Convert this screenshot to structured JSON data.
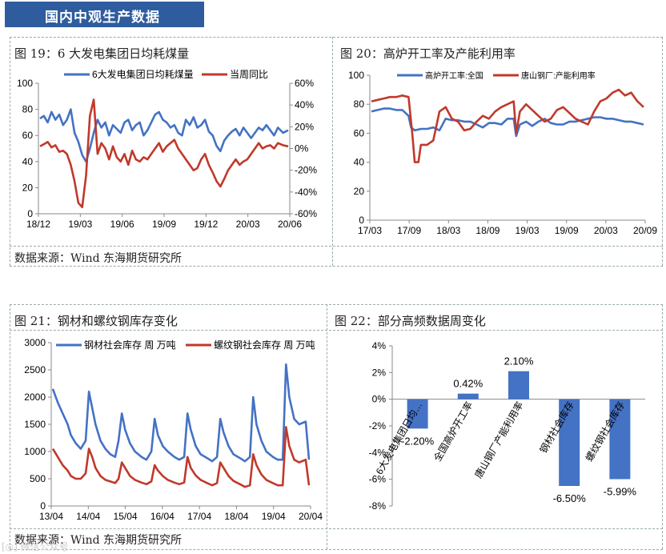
{
  "header": {
    "title": "国内中观生产数据"
  },
  "source_text": "数据来源：Wind   东海期货研究所",
  "watermark": "[◎] 微信公众号",
  "charts": [
    {
      "panel_title": "图 19：6 大发电集团日均耗煤量",
      "chart_data": {
        "type": "line",
        "title": "",
        "x_ticks": [
          "18/12",
          "19/03",
          "19/06",
          "19/09",
          "19/12",
          "20/03",
          "20/06"
        ],
        "y_left": {
          "ticks": [
            "0",
            "20",
            "40",
            "60",
            "80",
            "100"
          ],
          "lim": [
            0,
            100
          ]
        },
        "y_right": {
          "ticks": [
            "-60%",
            "-40%",
            "-20%",
            "0%",
            "20%",
            "40%",
            "60%"
          ],
          "lim": [
            -60,
            60
          ]
        },
        "series": [
          {
            "name": "6大发电集团日均耗煤量",
            "axis": "left",
            "color": "#4472C4",
            "x": [
              0,
              0.3,
              0.6,
              0.9,
              1.2,
              1.5,
              1.8,
              2.1,
              2.4,
              2.7,
              3.0,
              3.3,
              3.6,
              3.9,
              4.2,
              4.5,
              4.8,
              5.1,
              5.4,
              5.7,
              6.0,
              6.3,
              6.6,
              6.9,
              7.2,
              7.5,
              7.8,
              8.1,
              8.4,
              8.7,
              9.0,
              9.3,
              9.6,
              9.9,
              10.2,
              10.5,
              10.8,
              11.1,
              11.4,
              11.7,
              12.0,
              12.3,
              12.6,
              12.9,
              13.2,
              13.5,
              13.8,
              14.1,
              14.4,
              14.7,
              15.0,
              15.3,
              15.6,
              15.9,
              16.2,
              16.5,
              16.8,
              17.1,
              17.4,
              17.7,
              18.0,
              18.3,
              18.6,
              19.0,
              19.4
            ],
            "values": [
              73,
              75,
              70,
              78,
              72,
              76,
              68,
              72,
              80,
              62,
              55,
              45,
              40,
              50,
              62,
              72,
              66,
              70,
              60,
              68,
              65,
              62,
              70,
              72,
              64,
              68,
              70,
              60,
              64,
              70,
              76,
              78,
              72,
              70,
              66,
              68,
              62,
              60,
              72,
              68,
              74,
              66,
              68,
              72,
              63,
              60,
              52,
              48,
              56,
              60,
              63,
              65,
              60,
              66,
              62,
              58,
              62,
              66,
              64,
              68,
              64,
              60,
              66,
              62,
              64
            ]
          },
          {
            "name": "当周同比",
            "axis": "right",
            "color": "#C0392B",
            "x": [
              0,
              0.3,
              0.6,
              0.9,
              1.2,
              1.5,
              1.8,
              2.1,
              2.4,
              2.7,
              3.0,
              3.3,
              3.6,
              3.9,
              4.2,
              4.5,
              4.8,
              5.1,
              5.4,
              5.7,
              6.0,
              6.3,
              6.6,
              6.9,
              7.2,
              7.5,
              7.8,
              8.1,
              8.4,
              8.7,
              9.0,
              9.3,
              9.6,
              9.9,
              10.2,
              10.5,
              10.8,
              11.1,
              11.4,
              11.7,
              12.0,
              12.3,
              12.6,
              12.9,
              13.2,
              13.5,
              13.8,
              14.1,
              14.4,
              14.7,
              15.0,
              15.3,
              15.6,
              15.9,
              16.2,
              16.5,
              16.8,
              17.1,
              17.4,
              17.7,
              18.0,
              18.3,
              18.6,
              19.0,
              19.4
            ],
            "values": [
              2,
              4,
              6,
              1,
              3,
              -3,
              -2,
              -5,
              -15,
              -30,
              -50,
              -54,
              -25,
              30,
              45,
              -5,
              5,
              0,
              -10,
              2,
              -8,
              -12,
              -5,
              -15,
              -2,
              -10,
              -12,
              -8,
              -10,
              -5,
              0,
              5,
              -3,
              2,
              5,
              8,
              0,
              -5,
              -10,
              -15,
              -20,
              -18,
              -10,
              -5,
              -15,
              -22,
              -30,
              -35,
              -28,
              -20,
              -15,
              -10,
              -15,
              -12,
              -10,
              -5,
              0,
              5,
              0,
              2,
              3,
              0,
              5,
              3,
              2
            ]
          }
        ]
      }
    },
    {
      "panel_title": "图 20：高炉开工率及产能利用率",
      "chart_data": {
        "type": "line",
        "title": "",
        "x_ticks": [
          "17/03",
          "17/09",
          "18/03",
          "18/09",
          "19/03",
          "19/09",
          "20/03",
          "20/09"
        ],
        "y_left": {
          "ticks": [
            "0",
            "20",
            "40",
            "60",
            "80",
            "100"
          ],
          "lim": [
            0,
            100
          ]
        },
        "series": [
          {
            "name": "高炉开工率:全国",
            "axis": "left",
            "color": "#4472C4",
            "x": [
              0,
              0.5,
              1,
              1.5,
              2,
              2.5,
              3,
              3.2,
              3.5,
              4,
              4.5,
              5,
              5.5,
              6,
              6.5,
              7,
              7.5,
              8,
              8.5,
              9,
              9.5,
              10,
              10.5,
              11,
              11.5,
              11.7,
              12,
              12.5,
              13,
              13.5,
              14,
              14.5,
              15,
              15.5,
              16,
              16.5,
              17,
              17.5,
              18,
              18.5,
              19,
              19.5,
              20,
              20.5,
              21,
              21.5,
              22
            ],
            "values": [
              75,
              76,
              77,
              77,
              76,
              76,
              72,
              64,
              62,
              63,
              63,
              64,
              62,
              70,
              69,
              69,
              68,
              68,
              66,
              64,
              67,
              67,
              66,
              70,
              70,
              58,
              66,
              68,
              65,
              68,
              70,
              67,
              66,
              66,
              68,
              68,
              69,
              70,
              71,
              71,
              70,
              70,
              69,
              68,
              68,
              67,
              66
            ]
          },
          {
            "name": "唐山钢厂:产能利用率",
            "axis": "left",
            "color": "#C0392B",
            "x": [
              0,
              0.5,
              1,
              1.5,
              2,
              2.5,
              3,
              3.3,
              3.5,
              3.8,
              4,
              4.5,
              5,
              5.5,
              6,
              6.5,
              7,
              7.5,
              8,
              8.5,
              9,
              9.5,
              10,
              10.5,
              11,
              11.5,
              11.7,
              12,
              12.5,
              13,
              13.5,
              14,
              14.5,
              15,
              15.5,
              16,
              16.5,
              17,
              17.5,
              18,
              18.5,
              19,
              19.5,
              20,
              20.5,
              21,
              21.5,
              22
            ],
            "values": [
              82,
              83,
              84,
              85,
              85,
              86,
              85,
              60,
              40,
              40,
              52,
              52,
              55,
              75,
              78,
              70,
              68,
              62,
              63,
              68,
              72,
              70,
              75,
              78,
              80,
              82,
              60,
              75,
              80,
              76,
              72,
              68,
              70,
              76,
              78,
              74,
              70,
              68,
              66,
              75,
              82,
              84,
              88,
              90,
              86,
              88,
              82,
              78
            ]
          }
        ]
      }
    },
    {
      "panel_title": "图 21：钢材和螺纹钢库存变化",
      "chart_data": {
        "type": "line",
        "title": "",
        "x_ticks": [
          "13/04",
          "14/04",
          "15/04",
          "16/04",
          "17/04",
          "18/04",
          "19/04",
          "20/04"
        ],
        "y_left": {
          "ticks": [
            "0",
            "500",
            "1000",
            "1500",
            "2000",
            "2500",
            "3000"
          ],
          "lim": [
            0,
            3000
          ]
        },
        "series": [
          {
            "name": "钢材社会库存 周 万吨",
            "axis": "left",
            "color": "#4472C4",
            "x": [
              0,
              0.15,
              0.3,
              0.45,
              0.55,
              0.7,
              0.85,
              1,
              1.1,
              1.2,
              1.3,
              1.45,
              1.6,
              1.75,
              1.9,
              2.0,
              2.1,
              2.2,
              2.35,
              2.5,
              2.7,
              2.85,
              3.0,
              3.1,
              3.2,
              3.35,
              3.5,
              3.7,
              3.85,
              4.0,
              4.1,
              4.2,
              4.35,
              4.5,
              4.7,
              4.85,
              5.0,
              5.1,
              5.2,
              5.35,
              5.5,
              5.7,
              5.85,
              6.0,
              6.1,
              6.2,
              6.35,
              6.5,
              6.7,
              6.85,
              7.0,
              7.1,
              7.2,
              7.35,
              7.5,
              7.7,
              7.8
            ],
            "values": [
              2150,
              1900,
              1700,
              1500,
              1300,
              1150,
              1050,
              1200,
              2100,
              1800,
              1500,
              1200,
              1050,
              950,
              900,
              1200,
              1700,
              1400,
              1150,
              1000,
              900,
              850,
              1000,
              1600,
              1300,
              1100,
              1000,
              900,
              850,
              900,
              1700,
              1400,
              1100,
              950,
              880,
              820,
              900,
              1600,
              1350,
              1100,
              950,
              880,
              820,
              900,
              2000,
              1500,
              1200,
              1000,
              900,
              850,
              850,
              2600,
              2000,
              1600,
              1500,
              1550,
              850
            ]
          },
          {
            "name": "螺纹钢社会库存 周 万吨",
            "axis": "left",
            "color": "#C0392B",
            "x": [
              0,
              0.15,
              0.3,
              0.45,
              0.55,
              0.7,
              0.85,
              1,
              1.1,
              1.2,
              1.3,
              1.45,
              1.6,
              1.75,
              1.9,
              2.0,
              2.1,
              2.2,
              2.35,
              2.5,
              2.7,
              2.85,
              3.0,
              3.1,
              3.2,
              3.35,
              3.5,
              3.7,
              3.85,
              4.0,
              4.1,
              4.2,
              4.35,
              4.5,
              4.7,
              4.85,
              5.0,
              5.1,
              5.2,
              5.35,
              5.5,
              5.7,
              5.85,
              6.0,
              6.1,
              6.2,
              6.35,
              6.5,
              6.7,
              6.85,
              7.0,
              7.1,
              7.2,
              7.35,
              7.5,
              7.7,
              7.8
            ],
            "values": [
              1050,
              900,
              750,
              650,
              550,
              500,
              500,
              600,
              1050,
              900,
              700,
              550,
              480,
              450,
              420,
              500,
              800,
              700,
              550,
              480,
              430,
              400,
              450,
              750,
              650,
              550,
              480,
              430,
              400,
              430,
              900,
              700,
              560,
              480,
              420,
              380,
              420,
              800,
              700,
              550,
              460,
              400,
              350,
              380,
              950,
              750,
              580,
              480,
              420,
              380,
              380,
              1450,
              1100,
              850,
              800,
              850,
              380
            ]
          }
        ]
      }
    },
    {
      "panel_title": "图 22：部分高频数据周变化",
      "chart_data": {
        "type": "bar",
        "title": "",
        "categories": [
          "6大发电集团日均…",
          "全国高炉开工率",
          "唐山钢厂产能利用率",
          "钢材社会库存",
          "螺纹钢社会库存"
        ],
        "values": [
          -2.2,
          0.42,
          2.1,
          -6.5,
          -5.99
        ],
        "value_labels": [
          "-2.20%",
          "0.42%",
          "2.10%",
          "-6.50%",
          "-5.99%"
        ],
        "y_left": {
          "ticks": [
            "4%",
            "2%",
            "0%",
            "-2%",
            "-4%",
            "-6%",
            "-8%"
          ],
          "lim": [
            -8,
            4
          ]
        },
        "color": "#4472C4"
      }
    }
  ]
}
